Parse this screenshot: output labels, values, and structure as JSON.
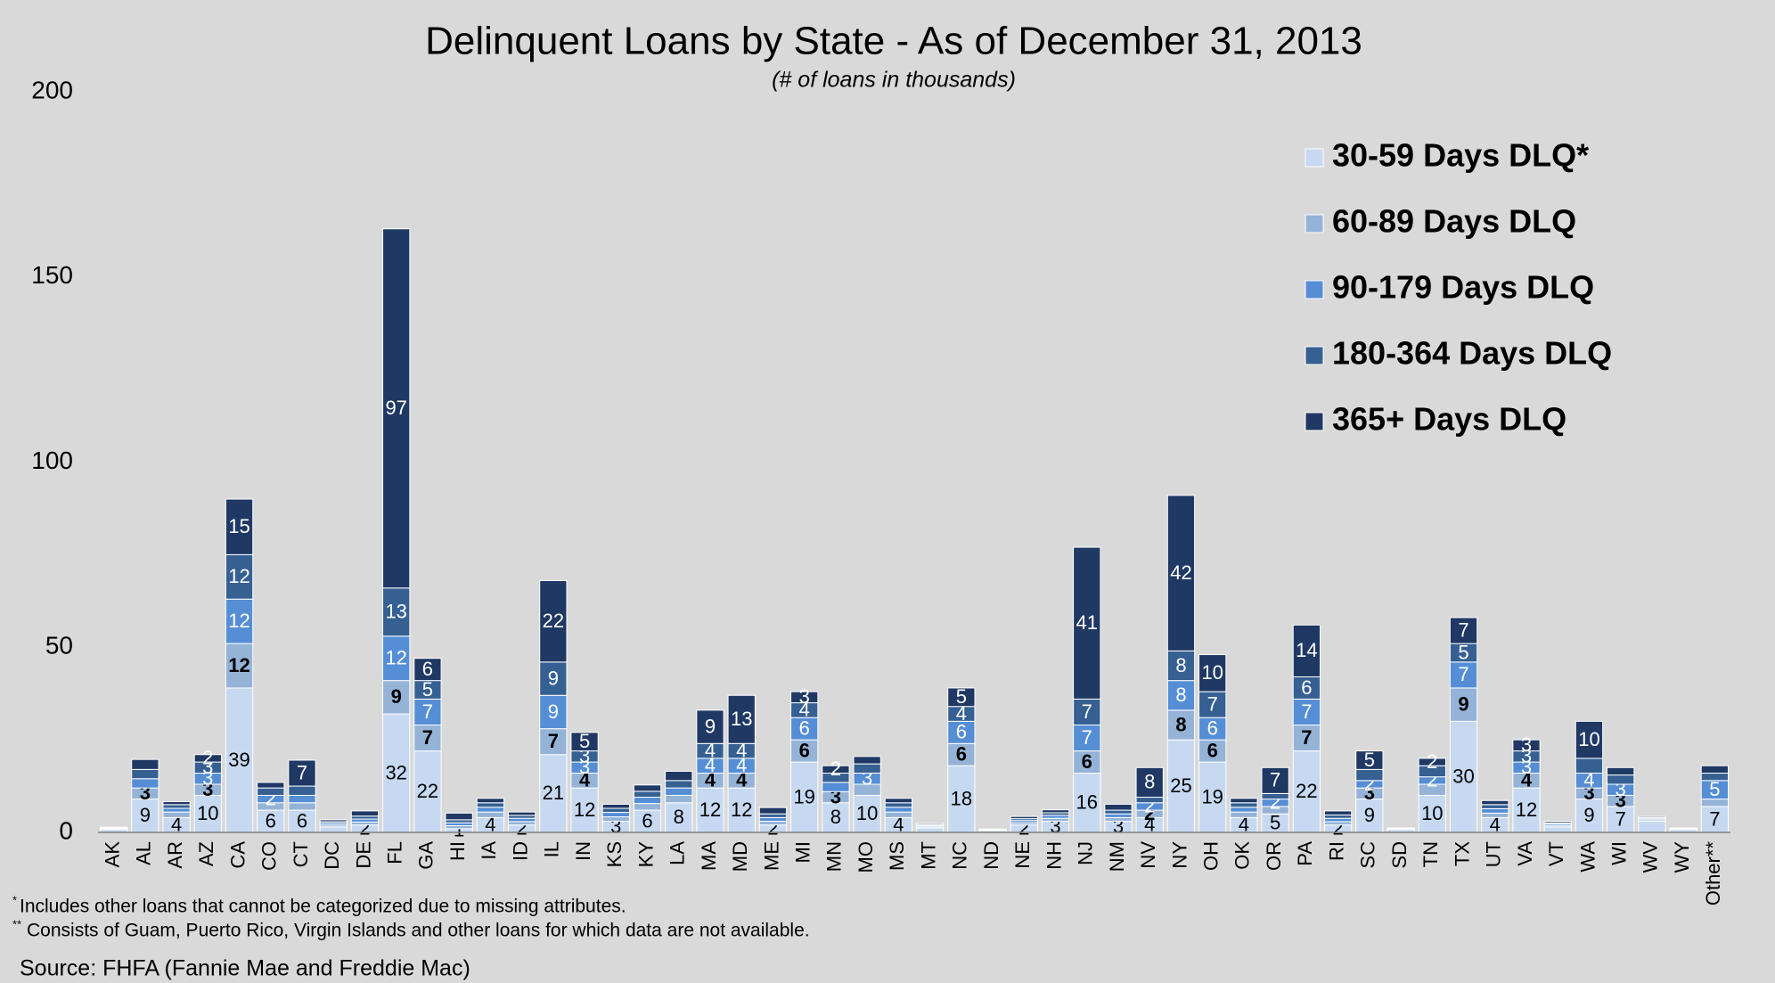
{
  "chart_data": {
    "type": "stacked_bar",
    "title": "Delinquent Loans by State - As of December 31, 2013",
    "subtitle": "(# of loans in thousands)",
    "categories": [
      "AK",
      "AL",
      "AR",
      "AZ",
      "CA",
      "CO",
      "CT",
      "DC",
      "DE",
      "FL",
      "GA",
      "HI",
      "IA",
      "ID",
      "IL",
      "IN",
      "KS",
      "KY",
      "LA",
      "MA",
      "MD",
      "ME",
      "MI",
      "MN",
      "MO",
      "MS",
      "MT",
      "NC",
      "ND",
      "NE",
      "NH",
      "NJ",
      "NM",
      "NV",
      "NY",
      "OH",
      "OK",
      "OR",
      "PA",
      "RI",
      "SC",
      "SD",
      "TN",
      "TX",
      "UT",
      "VA",
      "VT",
      "WA",
      "WI",
      "WV",
      "WY",
      "Other**"
    ],
    "series": [
      {
        "name": "30-59 Days DLQ*",
        "color": "#c6d9f1",
        "values": [
          0.8,
          9,
          4,
          10,
          39,
          6,
          6,
          1.5,
          2,
          32,
          22,
          1,
          4,
          2,
          21,
          12,
          3,
          6,
          8,
          12,
          12,
          2,
          19,
          8,
          10,
          4,
          1.2,
          18,
          0.5,
          2,
          3,
          16,
          3,
          4,
          25,
          19,
          4,
          5,
          22,
          2,
          9,
          0.8,
          10,
          30,
          4,
          12,
          1.5,
          9,
          7,
          3,
          0.8,
          7
        ],
        "value_labels": [
          null,
          "9",
          "4",
          "10",
          "39",
          "6",
          "6",
          null,
          "2",
          "32",
          "22",
          "1",
          "4",
          "2",
          "21",
          "12",
          "3",
          "6",
          "8",
          "12",
          "12",
          "2",
          "19",
          "8",
          "10",
          "4",
          null,
          "18",
          null,
          "2",
          "3",
          "16",
          "3",
          "4",
          "25",
          "19",
          "4",
          "5",
          "22",
          "2",
          "9",
          null,
          "10",
          "30",
          "4",
          "12",
          null,
          "9",
          "7",
          null,
          null,
          "7"
        ]
      },
      {
        "name": "60-89 Days DLQ",
        "color": "#95b3d7",
        "values": [
          0.2,
          3,
          1.5,
          3,
          12,
          2,
          2,
          0.5,
          0.8,
          9,
          7,
          0.8,
          1.5,
          0.9,
          7,
          4,
          1.2,
          1.8,
          2,
          4,
          4,
          1,
          6,
          3,
          3,
          1.5,
          0.3,
          6,
          0.1,
          0.6,
          0.8,
          6,
          1,
          2,
          8,
          6,
          1.5,
          2,
          7,
          0.9,
          3,
          0.1,
          3,
          9,
          1.2,
          4,
          0.4,
          3,
          3,
          0.4,
          0.1,
          2
        ],
        "value_labels": [
          null,
          "3",
          null,
          "3",
          "12",
          null,
          null,
          null,
          null,
          "9",
          "7",
          null,
          null,
          null,
          "7",
          "4",
          null,
          null,
          null,
          "4",
          "4",
          null,
          "6",
          "3",
          null,
          null,
          null,
          "6",
          null,
          null,
          null,
          "6",
          null,
          "2",
          "8",
          "6",
          null,
          null,
          "7",
          null,
          "3",
          null,
          null,
          "9",
          null,
          "4",
          null,
          "3",
          "3",
          null,
          null,
          null
        ]
      },
      {
        "name": "90-179 Days DLQ",
        "color": "#558ed5",
        "values": [
          0.2,
          2.5,
          1,
          3,
          12,
          2,
          2,
          0.5,
          0.8,
          12,
          7,
          0.8,
          1.3,
          0.9,
          9,
          3,
          1.2,
          1.7,
          2,
          4,
          4,
          1,
          6,
          2.5,
          3,
          1.3,
          0.3,
          6,
          0.1,
          0.6,
          0.8,
          7,
          1,
          2,
          8,
          6,
          1.3,
          2,
          7,
          0.9,
          2,
          0.1,
          2,
          7,
          1.2,
          3,
          0.4,
          4,
          3,
          0.3,
          0.1,
          5
        ],
        "value_labels": [
          null,
          null,
          null,
          "3",
          "12",
          "2",
          null,
          null,
          null,
          "12",
          "7",
          null,
          null,
          null,
          "9",
          "3",
          null,
          null,
          null,
          "4",
          "4",
          null,
          "6",
          null,
          "3",
          null,
          null,
          "6",
          null,
          null,
          null,
          "7",
          null,
          "2",
          "8",
          "6",
          null,
          "2",
          "7",
          null,
          "2",
          null,
          "2",
          "7",
          null,
          "3",
          null,
          "4",
          "3",
          null,
          null,
          "5"
        ]
      },
      {
        "name": "180-364 Days DLQ",
        "color": "#366092",
        "values": [
          0.1,
          2.5,
          1,
          3,
          12,
          2,
          2.5,
          0.4,
          0.8,
          13,
          5,
          0.8,
          1.2,
          0.8,
          9,
          3,
          1.1,
          1.6,
          2,
          4,
          4,
          1,
          4,
          2.5,
          2.5,
          1.2,
          0.3,
          4,
          0.1,
          0.5,
          0.7,
          7,
          1,
          1.5,
          8,
          7,
          1.2,
          1.5,
          6,
          0.9,
          3,
          0.1,
          3,
          5,
          1.1,
          3,
          0.3,
          4,
          2.5,
          0.3,
          0.1,
          2
        ],
        "value_labels": [
          null,
          null,
          null,
          "3",
          "12",
          null,
          null,
          null,
          null,
          "13",
          "5",
          null,
          null,
          null,
          "9",
          "3",
          null,
          null,
          null,
          "4",
          "4",
          null,
          "4",
          null,
          null,
          null,
          null,
          "4",
          null,
          null,
          null,
          "7",
          null,
          null,
          "8",
          "7",
          null,
          null,
          "6",
          null,
          null,
          null,
          null,
          "5",
          null,
          "3",
          null,
          null,
          null,
          null,
          null,
          null
        ]
      },
      {
        "name": "365+ Days DLQ",
        "color": "#1f3864",
        "values": [
          0.1,
          2.7,
          0.8,
          2,
          15,
          1.5,
          7,
          0.5,
          1.4,
          97,
          6,
          1.8,
          1.2,
          0.9,
          22,
          5,
          1.1,
          1.7,
          2.5,
          9,
          13,
          1.7,
          3,
          2,
          2,
          1.2,
          0.3,
          5,
          0.1,
          0.6,
          0.8,
          41,
          1.6,
          8,
          42,
          10,
          1.2,
          7,
          14,
          1.1,
          5,
          0.1,
          2,
          7,
          1.1,
          3,
          0.4,
          10,
          2,
          0.3,
          0.1,
          2
        ],
        "value_labels": [
          null,
          null,
          null,
          "2",
          "15",
          null,
          "7",
          null,
          null,
          "97",
          "6",
          null,
          null,
          null,
          "22",
          "5",
          null,
          null,
          null,
          "9",
          "13",
          null,
          "3",
          "2",
          null,
          null,
          null,
          "5",
          null,
          null,
          null,
          "41",
          null,
          "8",
          "42",
          "10",
          null,
          "7",
          "14",
          null,
          "5",
          null,
          "2",
          "7",
          null,
          "3",
          null,
          "10",
          null,
          null,
          null,
          null
        ]
      }
    ],
    "ylim": [
      0,
      200
    ],
    "yticks": [
      0,
      50,
      100,
      150,
      200
    ],
    "grid": false,
    "legend": "upper right",
    "footnotes": [
      {
        "marker": "*",
        "text": "Includes other loans that cannot be categorized due to missing attributes."
      },
      {
        "marker": "**",
        "text": "Consists of Guam, Puerto Rico, Virgin Islands and other loans for which data are not available."
      }
    ],
    "source": "Source: FHFA (Fannie Mae and Freddie Mac)"
  }
}
